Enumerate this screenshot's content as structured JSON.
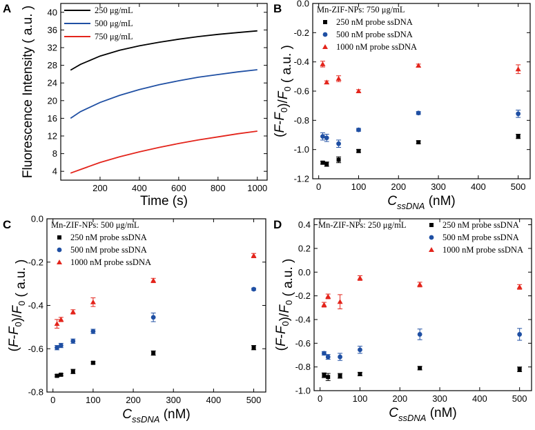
{
  "chart_data": [
    {
      "panel": "A",
      "type": "line",
      "xlabel": "Time (s)",
      "ylabel": "Fluorescence Intensity ( a.u. )",
      "xlim": [
        0,
        1050
      ],
      "ylim": [
        2,
        42
      ],
      "xticks": [
        200,
        400,
        600,
        800,
        1000
      ],
      "yticks": [
        4,
        8,
        12,
        16,
        20,
        24,
        28,
        32,
        36,
        40
      ],
      "series": [
        {
          "name": "250 μg/mL",
          "color": "#000000",
          "x": [
            50,
            100,
            200,
            300,
            400,
            500,
            600,
            700,
            800,
            900,
            1000
          ],
          "y": [
            26.9,
            28.2,
            30.1,
            31.4,
            32.4,
            33.2,
            33.9,
            34.5,
            35.0,
            35.4,
            35.8
          ]
        },
        {
          "name": "500 μg/mL",
          "color": "#1f4fa3",
          "x": [
            50,
            100,
            200,
            300,
            400,
            500,
            600,
            700,
            800,
            900,
            1000
          ],
          "y": [
            16.0,
            17.5,
            19.6,
            21.2,
            22.5,
            23.6,
            24.5,
            25.3,
            25.9,
            26.5,
            27.0
          ]
        },
        {
          "name": "750 μg/mL",
          "color": "#e3241b",
          "x": [
            50,
            100,
            200,
            300,
            400,
            500,
            600,
            700,
            800,
            900,
            1000
          ],
          "y": [
            3.6,
            4.4,
            6.0,
            7.3,
            8.4,
            9.4,
            10.3,
            11.1,
            11.8,
            12.5,
            13.1
          ]
        }
      ]
    },
    {
      "panel": "B",
      "type": "scatter",
      "annotation": "Mn-ZIF-NPs: 750 μg/mL",
      "xlabel": "C",
      "xlabel_sub": "ssDNA",
      "xlabel_unit": "(nM)",
      "ylabel": "(F-F0)/F0 ( a.u. )",
      "xlim": [
        -15,
        530
      ],
      "ylim": [
        -1.2,
        0.0
      ],
      "xticks": [
        0,
        100,
        200,
        300,
        400,
        500
      ],
      "yticks": [
        -1.2,
        -1.0,
        -0.8,
        -0.6,
        -0.4,
        -0.2,
        0.0
      ],
      "series": [
        {
          "name": "250 nM probe ssDNA",
          "marker": "square",
          "color": "#000000",
          "x": [
            10,
            20,
            50,
            100,
            250,
            500
          ],
          "y": [
            -1.09,
            -1.1,
            -1.07,
            -1.01,
            -0.95,
            -0.91
          ],
          "err": [
            0.01,
            0.015,
            0.02,
            0.01,
            0.01,
            0.015
          ]
        },
        {
          "name": "500 nM probe ssDNA",
          "marker": "circle",
          "color": "#1f4fa3",
          "x": [
            10,
            20,
            50,
            100,
            250,
            500
          ],
          "y": [
            -0.91,
            -0.92,
            -0.96,
            -0.865,
            -0.75,
            -0.755
          ],
          "err": [
            0.025,
            0.025,
            0.025,
            0.01,
            0.01,
            0.025
          ]
        },
        {
          "name": "1000 nM probe ssDNA",
          "marker": "triangle",
          "color": "#e3241b",
          "x": [
            10,
            20,
            50,
            100,
            250,
            500
          ],
          "y": [
            -0.415,
            -0.54,
            -0.515,
            -0.6,
            -0.425,
            -0.45
          ],
          "err": [
            0.02,
            0.01,
            0.02,
            0.01,
            0.01,
            0.03
          ]
        }
      ]
    },
    {
      "panel": "C",
      "type": "scatter",
      "annotation": "Mn-ZIF-NPs: 500 μg/mL",
      "xlabel": "C",
      "xlabel_sub": "ssDNA",
      "xlabel_unit": "(nM)",
      "ylabel": "(F-F0)/F0 ( a.u. )",
      "xlim": [
        -15,
        530
      ],
      "ylim": [
        -0.8,
        0.0
      ],
      "xticks": [
        0,
        100,
        200,
        300,
        400,
        500
      ],
      "yticks": [
        -0.8,
        -0.6,
        -0.4,
        -0.2,
        0.0
      ],
      "series": [
        {
          "name": "250 nM probe ssDNA",
          "marker": "square",
          "color": "#000000",
          "x": [
            10,
            20,
            50,
            100,
            250,
            500
          ],
          "y": [
            -0.725,
            -0.72,
            -0.705,
            -0.665,
            -0.62,
            -0.595
          ],
          "err": [
            0.005,
            0.005,
            0.01,
            0.005,
            0.01,
            0.01
          ]
        },
        {
          "name": "500 nM probe ssDNA",
          "marker": "circle",
          "color": "#1f4fa3",
          "x": [
            10,
            20,
            50,
            100,
            250,
            500
          ],
          "y": [
            -0.595,
            -0.585,
            -0.565,
            -0.52,
            -0.455,
            -0.325
          ],
          "err": [
            0.01,
            0.01,
            0.01,
            0.01,
            0.02,
            0.005
          ]
        },
        {
          "name": "1000 nM probe ssDNA",
          "marker": "triangle",
          "color": "#e3241b",
          "x": [
            10,
            20,
            50,
            100,
            250,
            500
          ],
          "y": [
            -0.485,
            -0.465,
            -0.43,
            -0.385,
            -0.285,
            -0.17
          ],
          "err": [
            0.02,
            0.01,
            0.01,
            0.02,
            0.01,
            0.01
          ]
        }
      ]
    },
    {
      "panel": "D",
      "type": "scatter",
      "annotation": "Mn-ZIF-NPs: 250 μg/mL",
      "xlabel": "C",
      "xlabel_sub": "ssDNA",
      "xlabel_unit": "(nM)",
      "ylabel": "(F-F0)/F0 ( a.u. )",
      "xlim": [
        -15,
        530
      ],
      "ylim": [
        -1.0,
        0.45
      ],
      "xticks": [
        0,
        100,
        200,
        300,
        400,
        500
      ],
      "yticks": [
        -1.0,
        -0.8,
        -0.6,
        -0.4,
        -0.2,
        0.0,
        0.2,
        0.4
      ],
      "series": [
        {
          "name": "250 nM probe ssDNA",
          "marker": "square",
          "color": "#000000",
          "x": [
            10,
            20,
            50,
            100,
            250,
            500
          ],
          "y": [
            -0.87,
            -0.885,
            -0.875,
            -0.86,
            -0.81,
            -0.82
          ],
          "err": [
            0.02,
            0.03,
            0.02,
            0.015,
            0.015,
            0.02
          ]
        },
        {
          "name": "500 nM probe ssDNA",
          "marker": "circle",
          "color": "#1f4fa3",
          "x": [
            10,
            20,
            50,
            100,
            250,
            500
          ],
          "y": [
            -0.685,
            -0.715,
            -0.715,
            -0.655,
            -0.525,
            -0.525
          ],
          "err": [
            0.015,
            0.02,
            0.03,
            0.03,
            0.045,
            0.05
          ]
        },
        {
          "name": "1000 nM probe ssDNA",
          "marker": "triangle",
          "color": "#e3241b",
          "x": [
            10,
            20,
            50,
            100,
            250,
            500
          ],
          "y": [
            -0.275,
            -0.205,
            -0.25,
            -0.05,
            -0.105,
            -0.125
          ],
          "err": [
            0.02,
            0.02,
            0.06,
            0.02,
            0.02,
            0.02
          ]
        }
      ]
    }
  ]
}
